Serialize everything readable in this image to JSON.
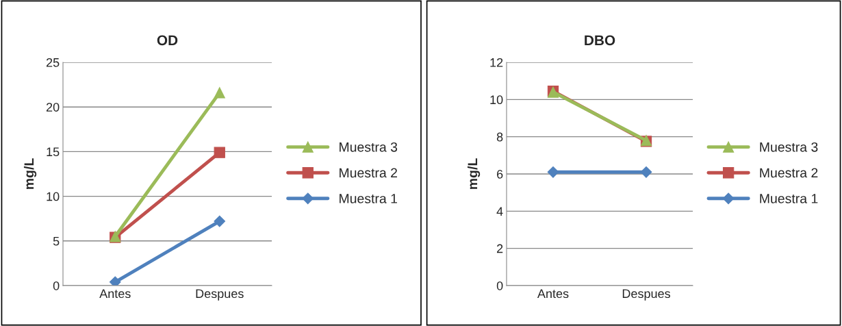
{
  "chart_data": [
    {
      "type": "line",
      "title": "OD",
      "ylabel": "mg/L",
      "categories": [
        "Antes",
        "Despues"
      ],
      "ylim": [
        0,
        25
      ],
      "yticks": [
        0,
        5,
        10,
        15,
        20,
        25
      ],
      "grid": "y",
      "legend": "right",
      "series": [
        {
          "name": "Muestra 1",
          "color": "#4f81bd",
          "marker": "diamond",
          "values": [
            0.4,
            7.2
          ]
        },
        {
          "name": "Muestra 2",
          "color": "#c0504d",
          "marker": "square",
          "values": [
            5.4,
            14.9
          ]
        },
        {
          "name": "Muestra 3",
          "color": "#9bbb59",
          "marker": "triangle",
          "values": [
            5.5,
            21.6
          ]
        }
      ]
    },
    {
      "type": "line",
      "title": "DBO",
      "ylabel": "mg/L",
      "categories": [
        "Antes",
        "Despues"
      ],
      "ylim": [
        0,
        12
      ],
      "yticks": [
        0,
        2,
        4,
        6,
        8,
        10,
        12
      ],
      "grid": "y",
      "legend": "right",
      "series": [
        {
          "name": "Muestra 1",
          "color": "#4f81bd",
          "marker": "diamond",
          "values": [
            6.1,
            6.1
          ]
        },
        {
          "name": "Muestra 2",
          "color": "#c0504d",
          "marker": "square",
          "values": [
            10.45,
            7.75
          ]
        },
        {
          "name": "Muestra 3",
          "color": "#9bbb59",
          "marker": "triangle",
          "values": [
            10.4,
            7.8
          ]
        }
      ]
    }
  ]
}
